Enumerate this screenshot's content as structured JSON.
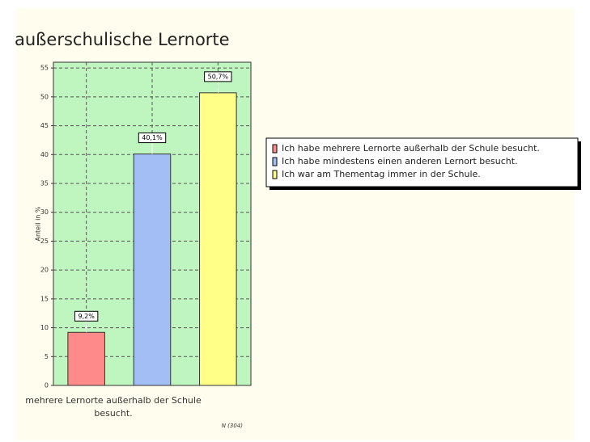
{
  "chart_data": {
    "type": "bar",
    "title": "außerschulische Lernorte",
    "ylabel": "Anteil in %",
    "categories": [
      "mehrere Lernorte außerhalb der Schule besucht.",
      null,
      null
    ],
    "values": [
      9.2,
      40.1,
      50.7
    ],
    "value_labels": [
      "9,2%",
      "40,1%",
      "50,7%"
    ],
    "colors": [
      "#ff8a8a",
      "#a3bdf5",
      "#ffff88"
    ],
    "legend": [
      "Ich habe mehrere Lernorte außerhalb der Schule besucht.",
      "Ich habe mindestens einen anderen Lernort besucht.",
      "Ich war am Thementag immer in der Schule."
    ],
    "ylim": [
      0,
      56
    ],
    "yticks": [
      0,
      5,
      10,
      15,
      20,
      25,
      30,
      35,
      40,
      45,
      50,
      55
    ],
    "grid": true,
    "note": "N (304)"
  }
}
